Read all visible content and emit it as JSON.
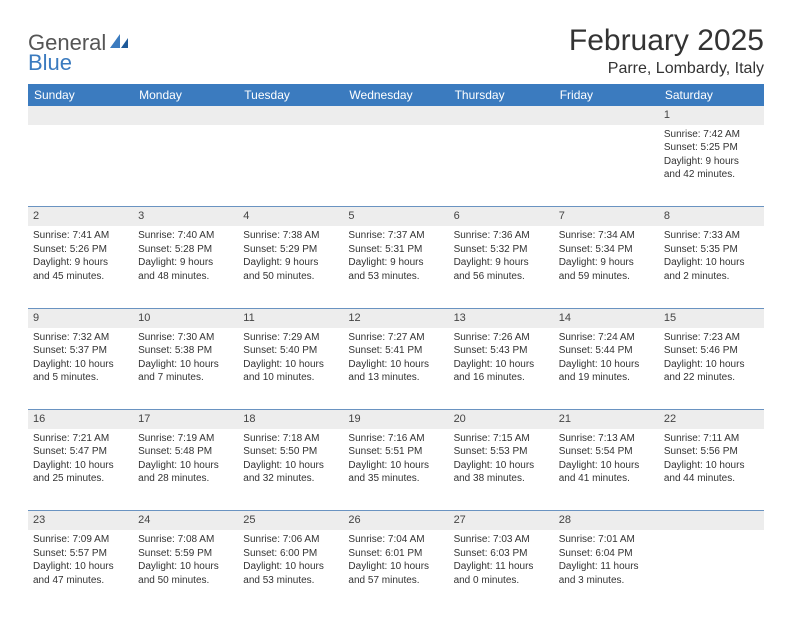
{
  "brand": {
    "word1": "General",
    "word2": "Blue"
  },
  "title": "February 2025",
  "location": "Parre, Lombardy, Italy",
  "colors": {
    "header_bg": "#3b7bbf",
    "header_text": "#ffffff",
    "daynum_bg": "#ededed",
    "border": "#6a93c1",
    "text": "#333333"
  },
  "weekdays": [
    "Sunday",
    "Monday",
    "Tuesday",
    "Wednesday",
    "Thursday",
    "Friday",
    "Saturday"
  ],
  "weeks": [
    [
      null,
      null,
      null,
      null,
      null,
      null,
      {
        "n": "1",
        "sr": "Sunrise: 7:42 AM",
        "ss": "Sunset: 5:25 PM",
        "d1": "Daylight: 9 hours",
        "d2": "and 42 minutes."
      }
    ],
    [
      {
        "n": "2",
        "sr": "Sunrise: 7:41 AM",
        "ss": "Sunset: 5:26 PM",
        "d1": "Daylight: 9 hours",
        "d2": "and 45 minutes."
      },
      {
        "n": "3",
        "sr": "Sunrise: 7:40 AM",
        "ss": "Sunset: 5:28 PM",
        "d1": "Daylight: 9 hours",
        "d2": "and 48 minutes."
      },
      {
        "n": "4",
        "sr": "Sunrise: 7:38 AM",
        "ss": "Sunset: 5:29 PM",
        "d1": "Daylight: 9 hours",
        "d2": "and 50 minutes."
      },
      {
        "n": "5",
        "sr": "Sunrise: 7:37 AM",
        "ss": "Sunset: 5:31 PM",
        "d1": "Daylight: 9 hours",
        "d2": "and 53 minutes."
      },
      {
        "n": "6",
        "sr": "Sunrise: 7:36 AM",
        "ss": "Sunset: 5:32 PM",
        "d1": "Daylight: 9 hours",
        "d2": "and 56 minutes."
      },
      {
        "n": "7",
        "sr": "Sunrise: 7:34 AM",
        "ss": "Sunset: 5:34 PM",
        "d1": "Daylight: 9 hours",
        "d2": "and 59 minutes."
      },
      {
        "n": "8",
        "sr": "Sunrise: 7:33 AM",
        "ss": "Sunset: 5:35 PM",
        "d1": "Daylight: 10 hours",
        "d2": "and 2 minutes."
      }
    ],
    [
      {
        "n": "9",
        "sr": "Sunrise: 7:32 AM",
        "ss": "Sunset: 5:37 PM",
        "d1": "Daylight: 10 hours",
        "d2": "and 5 minutes."
      },
      {
        "n": "10",
        "sr": "Sunrise: 7:30 AM",
        "ss": "Sunset: 5:38 PM",
        "d1": "Daylight: 10 hours",
        "d2": "and 7 minutes."
      },
      {
        "n": "11",
        "sr": "Sunrise: 7:29 AM",
        "ss": "Sunset: 5:40 PM",
        "d1": "Daylight: 10 hours",
        "d2": "and 10 minutes."
      },
      {
        "n": "12",
        "sr": "Sunrise: 7:27 AM",
        "ss": "Sunset: 5:41 PM",
        "d1": "Daylight: 10 hours",
        "d2": "and 13 minutes."
      },
      {
        "n": "13",
        "sr": "Sunrise: 7:26 AM",
        "ss": "Sunset: 5:43 PM",
        "d1": "Daylight: 10 hours",
        "d2": "and 16 minutes."
      },
      {
        "n": "14",
        "sr": "Sunrise: 7:24 AM",
        "ss": "Sunset: 5:44 PM",
        "d1": "Daylight: 10 hours",
        "d2": "and 19 minutes."
      },
      {
        "n": "15",
        "sr": "Sunrise: 7:23 AM",
        "ss": "Sunset: 5:46 PM",
        "d1": "Daylight: 10 hours",
        "d2": "and 22 minutes."
      }
    ],
    [
      {
        "n": "16",
        "sr": "Sunrise: 7:21 AM",
        "ss": "Sunset: 5:47 PM",
        "d1": "Daylight: 10 hours",
        "d2": "and 25 minutes."
      },
      {
        "n": "17",
        "sr": "Sunrise: 7:19 AM",
        "ss": "Sunset: 5:48 PM",
        "d1": "Daylight: 10 hours",
        "d2": "and 28 minutes."
      },
      {
        "n": "18",
        "sr": "Sunrise: 7:18 AM",
        "ss": "Sunset: 5:50 PM",
        "d1": "Daylight: 10 hours",
        "d2": "and 32 minutes."
      },
      {
        "n": "19",
        "sr": "Sunrise: 7:16 AM",
        "ss": "Sunset: 5:51 PM",
        "d1": "Daylight: 10 hours",
        "d2": "and 35 minutes."
      },
      {
        "n": "20",
        "sr": "Sunrise: 7:15 AM",
        "ss": "Sunset: 5:53 PM",
        "d1": "Daylight: 10 hours",
        "d2": "and 38 minutes."
      },
      {
        "n": "21",
        "sr": "Sunrise: 7:13 AM",
        "ss": "Sunset: 5:54 PM",
        "d1": "Daylight: 10 hours",
        "d2": "and 41 minutes."
      },
      {
        "n": "22",
        "sr": "Sunrise: 7:11 AM",
        "ss": "Sunset: 5:56 PM",
        "d1": "Daylight: 10 hours",
        "d2": "and 44 minutes."
      }
    ],
    [
      {
        "n": "23",
        "sr": "Sunrise: 7:09 AM",
        "ss": "Sunset: 5:57 PM",
        "d1": "Daylight: 10 hours",
        "d2": "and 47 minutes."
      },
      {
        "n": "24",
        "sr": "Sunrise: 7:08 AM",
        "ss": "Sunset: 5:59 PM",
        "d1": "Daylight: 10 hours",
        "d2": "and 50 minutes."
      },
      {
        "n": "25",
        "sr": "Sunrise: 7:06 AM",
        "ss": "Sunset: 6:00 PM",
        "d1": "Daylight: 10 hours",
        "d2": "and 53 minutes."
      },
      {
        "n": "26",
        "sr": "Sunrise: 7:04 AM",
        "ss": "Sunset: 6:01 PM",
        "d1": "Daylight: 10 hours",
        "d2": "and 57 minutes."
      },
      {
        "n": "27",
        "sr": "Sunrise: 7:03 AM",
        "ss": "Sunset: 6:03 PM",
        "d1": "Daylight: 11 hours",
        "d2": "and 0 minutes."
      },
      {
        "n": "28",
        "sr": "Sunrise: 7:01 AM",
        "ss": "Sunset: 6:04 PM",
        "d1": "Daylight: 11 hours",
        "d2": "and 3 minutes."
      },
      null
    ]
  ]
}
